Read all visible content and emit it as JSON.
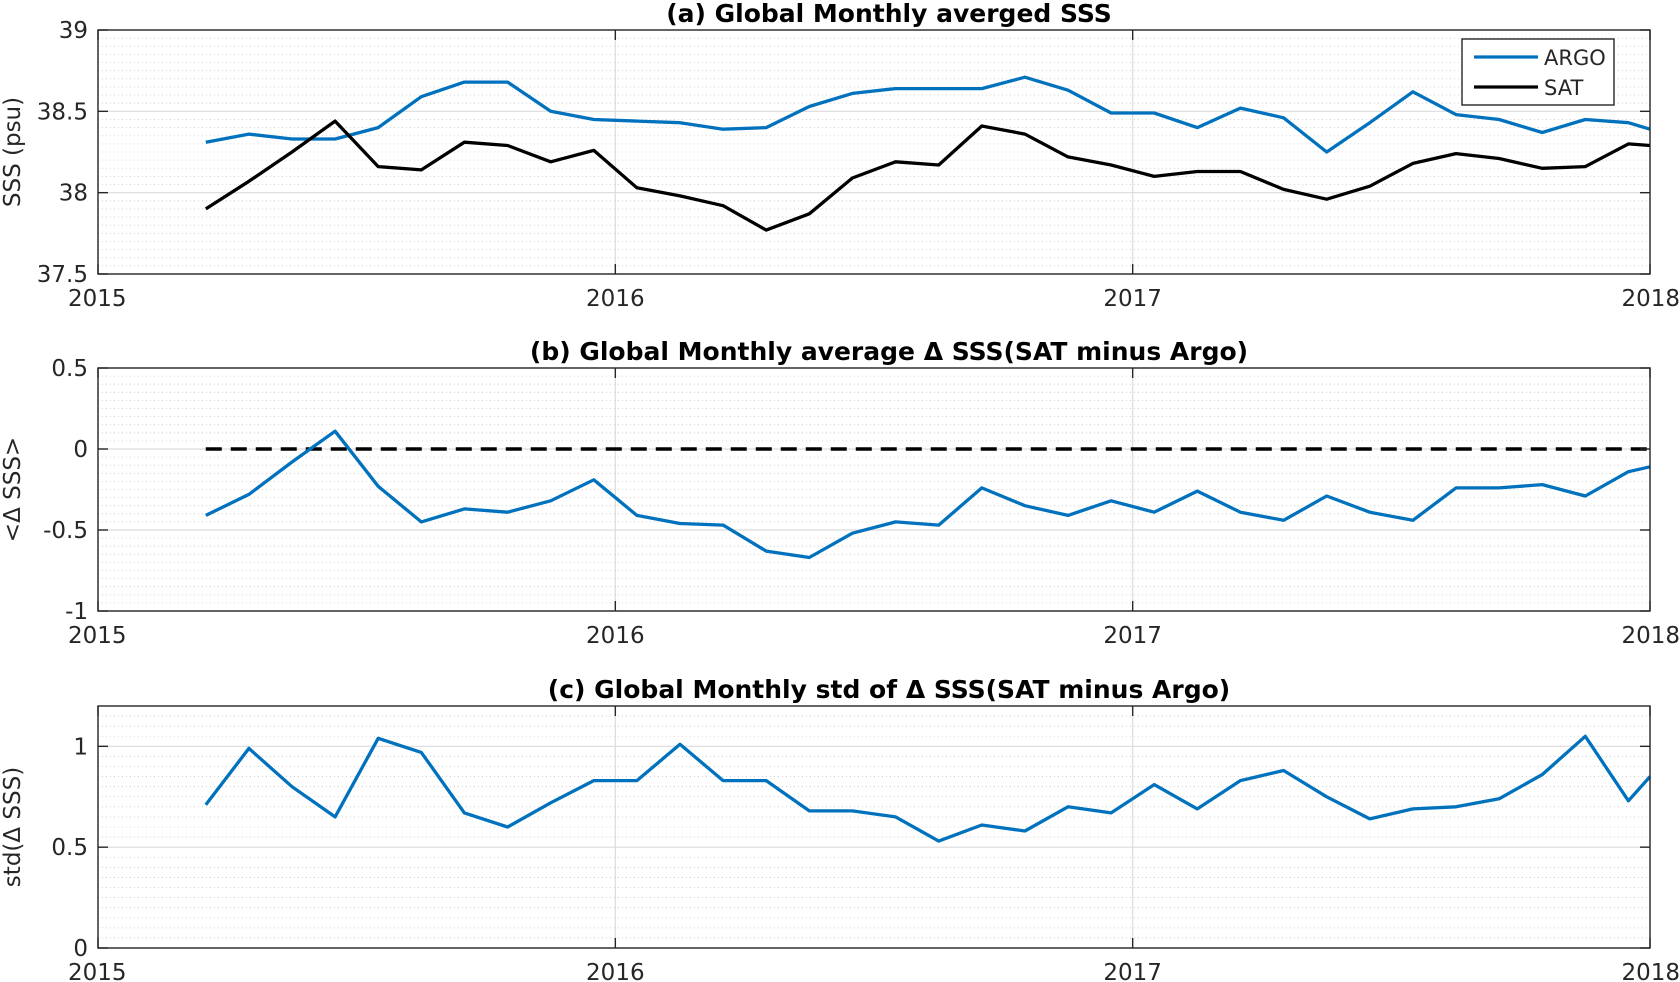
{
  "chart_data": [
    {
      "type": "line",
      "title": "(a) Global Monthly averged SSS",
      "xlabel": "",
      "ylabel": "SSS (psu)",
      "xlim": [
        2015,
        2018
      ],
      "ylim": [
        37.5,
        39
      ],
      "x_ticks": [
        "2015",
        "2016",
        "2017",
        "2018"
      ],
      "y_ticks": [
        "37.5",
        "38",
        "38.5",
        "39"
      ],
      "y_tick_values": [
        37.5,
        38,
        38.5,
        39
      ],
      "minor_y_step": 0.05,
      "grid": true,
      "legend": "top-right",
      "x": [
        2015.2083,
        2015.2917,
        2015.375,
        2015.4583,
        2015.5417,
        2015.625,
        2015.7083,
        2015.7917,
        2015.875,
        2015.9583,
        2016.0417,
        2016.125,
        2016.2083,
        2016.2917,
        2016.375,
        2016.4583,
        2016.5417,
        2016.625,
        2016.7083,
        2016.7917,
        2016.875,
        2016.9583,
        2017.0417,
        2017.125,
        2017.2083,
        2017.2917,
        2017.375,
        2017.4583,
        2017.5417,
        2017.625,
        2017.7083,
        2017.7917,
        2017.875,
        2017.9583,
        2018.0
      ],
      "series": [
        {
          "name": "ARGO",
          "color": "#0072BD",
          "values": [
            38.31,
            38.36,
            38.33,
            38.33,
            38.4,
            38.59,
            38.68,
            38.68,
            38.5,
            38.45,
            38.44,
            38.43,
            38.39,
            38.4,
            38.53,
            38.61,
            38.64,
            38.64,
            38.64,
            38.71,
            38.63,
            38.49,
            38.49,
            38.4,
            38.52,
            38.46,
            38.25,
            38.43,
            38.62,
            38.48,
            38.45,
            38.37,
            38.45,
            38.43,
            38.39
          ]
        },
        {
          "name": "SAT",
          "color": "#000000",
          "values": [
            37.9,
            38.07,
            38.25,
            38.44,
            38.16,
            38.14,
            38.31,
            38.29,
            38.19,
            38.26,
            38.03,
            37.98,
            37.92,
            37.77,
            37.87,
            38.09,
            38.19,
            38.17,
            38.41,
            38.36,
            38.22,
            38.17,
            38.1,
            38.13,
            38.13,
            38.02,
            37.96,
            38.04,
            38.18,
            38.24,
            38.21,
            38.15,
            38.16,
            38.3,
            38.29
          ]
        }
      ]
    },
    {
      "type": "line",
      "title": "(b) Global Monthly average Δ SSS(SAT minus Argo)",
      "xlabel": "",
      "ylabel": "<Δ SSS>",
      "xlim": [
        2015,
        2018
      ],
      "ylim": [
        -1,
        0.5
      ],
      "x_ticks": [
        "2015",
        "2016",
        "2017",
        "2018"
      ],
      "y_ticks": [
        "-1",
        "-0.5",
        "0",
        "0.5"
      ],
      "y_tick_values": [
        -1,
        -0.5,
        0,
        0.5
      ],
      "minor_y_step": 0.05,
      "grid": true,
      "reference_line": {
        "y": 0,
        "x_start": 2015.2083,
        "x_end": 2018.0,
        "style": "dashed"
      },
      "x": [
        2015.2083,
        2015.2917,
        2015.375,
        2015.4583,
        2015.5417,
        2015.625,
        2015.7083,
        2015.7917,
        2015.875,
        2015.9583,
        2016.0417,
        2016.125,
        2016.2083,
        2016.2917,
        2016.375,
        2016.4583,
        2016.5417,
        2016.625,
        2016.7083,
        2016.7917,
        2016.875,
        2016.9583,
        2017.0417,
        2017.125,
        2017.2083,
        2017.2917,
        2017.375,
        2017.4583,
        2017.5417,
        2017.625,
        2017.7083,
        2017.7917,
        2017.875,
        2017.9583,
        2018.0
      ],
      "series": [
        {
          "color": "#0072BD",
          "values": [
            -0.41,
            -0.28,
            -0.08,
            0.11,
            -0.23,
            -0.45,
            -0.37,
            -0.39,
            -0.32,
            -0.19,
            -0.41,
            -0.46,
            -0.47,
            -0.63,
            -0.67,
            -0.52,
            -0.45,
            -0.47,
            -0.24,
            -0.35,
            -0.41,
            -0.32,
            -0.39,
            -0.26,
            -0.39,
            -0.44,
            -0.29,
            -0.39,
            -0.44,
            -0.24,
            -0.24,
            -0.22,
            -0.29,
            -0.14,
            -0.11
          ]
        }
      ]
    },
    {
      "type": "line",
      "title": "(c) Global Monthly std of Δ SSS(SAT minus Argo)",
      "xlabel": "",
      "ylabel": "std(Δ SSS)",
      "xlim": [
        2015,
        2018
      ],
      "ylim": [
        0,
        1.2
      ],
      "x_ticks": [
        "2015",
        "2016",
        "2017",
        "2018"
      ],
      "y_ticks": [
        "0",
        "0.5",
        "1"
      ],
      "y_tick_values": [
        0,
        0.5,
        1
      ],
      "minor_y_step": 0.05,
      "grid": true,
      "x": [
        2015.2083,
        2015.2917,
        2015.375,
        2015.4583,
        2015.5417,
        2015.625,
        2015.7083,
        2015.7917,
        2015.875,
        2015.9583,
        2016.0417,
        2016.125,
        2016.2083,
        2016.2917,
        2016.375,
        2016.4583,
        2016.5417,
        2016.625,
        2016.7083,
        2016.7917,
        2016.875,
        2016.9583,
        2017.0417,
        2017.125,
        2017.2083,
        2017.2917,
        2017.375,
        2017.4583,
        2017.5417,
        2017.625,
        2017.7083,
        2017.7917,
        2017.875,
        2017.9583,
        2018.0
      ],
      "series": [
        {
          "color": "#0072BD",
          "values": [
            0.71,
            0.99,
            0.8,
            0.65,
            1.04,
            0.97,
            0.67,
            0.6,
            0.72,
            0.83,
            0.83,
            1.01,
            0.83,
            0.83,
            0.68,
            0.68,
            0.65,
            0.53,
            0.61,
            0.58,
            0.7,
            0.67,
            0.81,
            0.69,
            0.83,
            0.88,
            0.75,
            0.64,
            0.69,
            0.7,
            0.74,
            0.86,
            1.05,
            0.73,
            0.85
          ]
        }
      ]
    }
  ]
}
